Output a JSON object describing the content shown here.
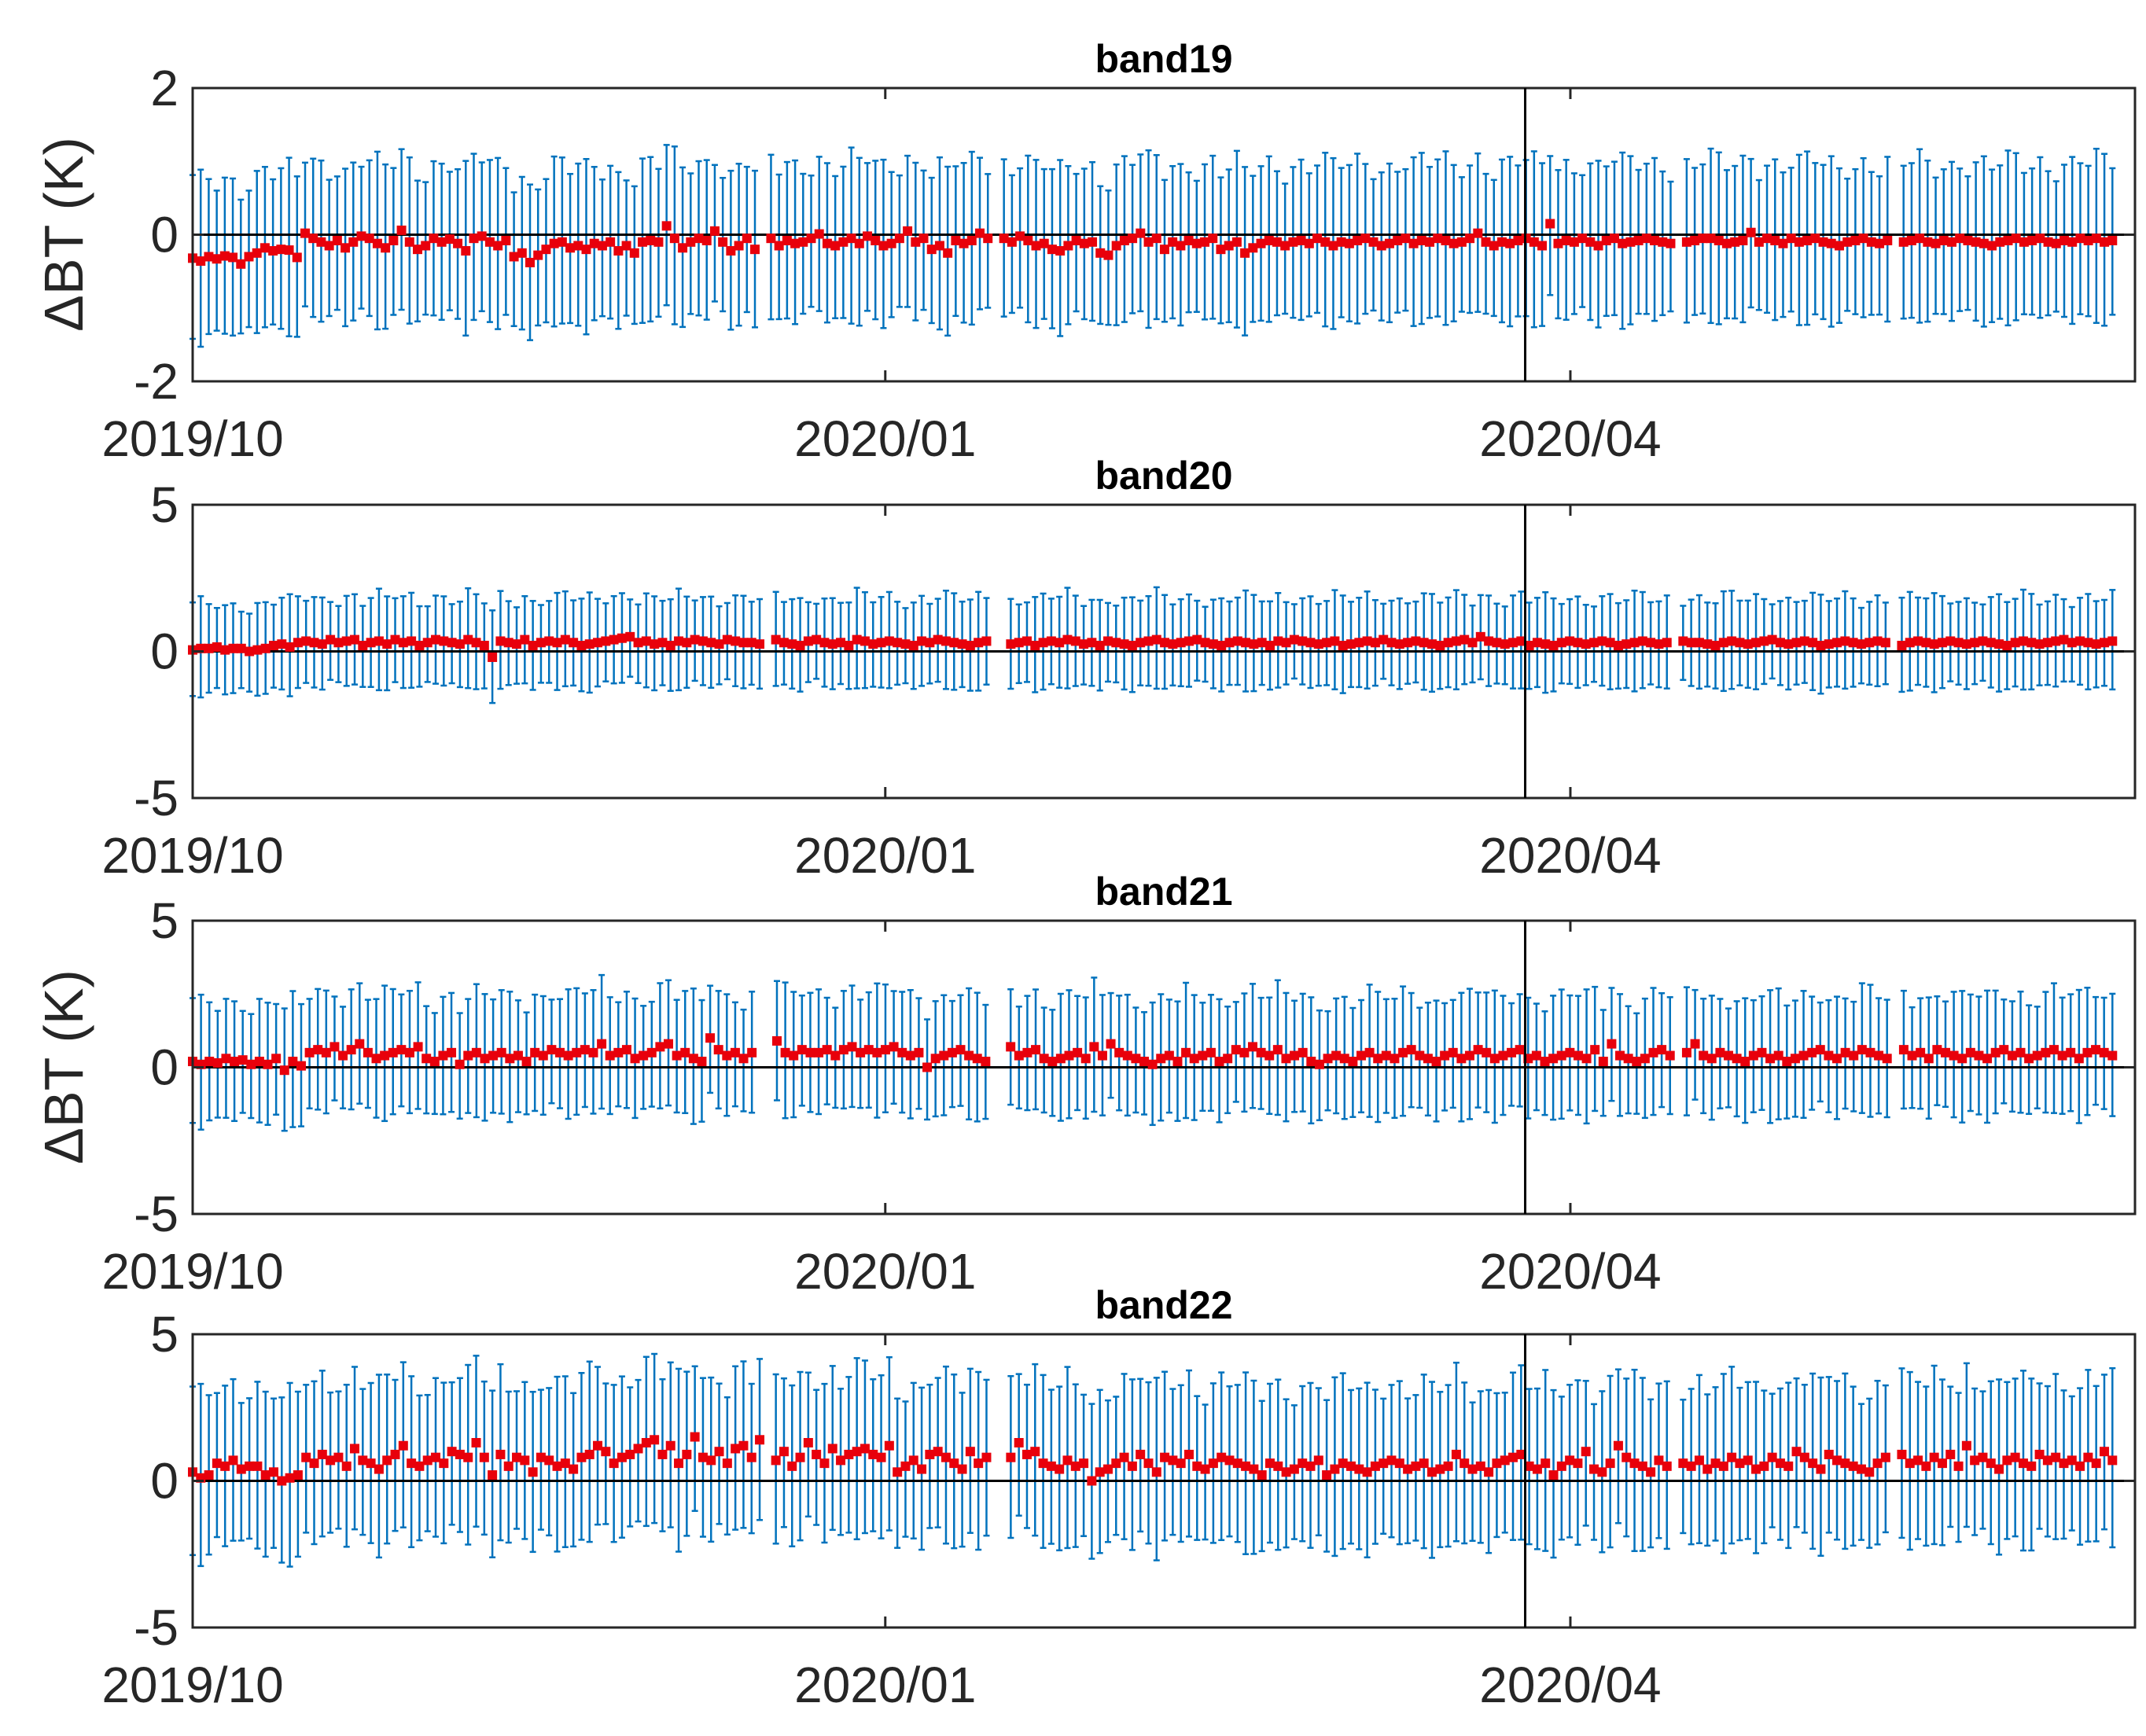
{
  "colors": {
    "errorbar": "#0072BD",
    "marker": "#E8000B",
    "axis": "#262626",
    "reference_line": "#000000"
  },
  "figure": {
    "ylabel": "ΔBT (K)",
    "x_tick_labels": [
      "2019/10",
      "2020/01",
      "2020/04"
    ],
    "vertical_line": "2020/03/26"
  },
  "chart_data": [
    {
      "type": "scatter",
      "title": "band19",
      "ylabel": "ΔBT (K)",
      "ylim": [
        -2,
        2
      ],
      "yticks": [
        2,
        0,
        -2
      ],
      "xlim": [
        "2019/10/01",
        "2020/06/15"
      ],
      "xticks": [
        "2019/10",
        "2020/01",
        "2020/04"
      ],
      "x_start": "2019/10/01",
      "x_end": "2020/06/12",
      "gaps": [
        "2019/12/16",
        "2020/01/16",
        "2020/04/15",
        "2020/05/14"
      ],
      "mean_level": -0.15,
      "std_approx": 1.05,
      "reference_line_y": 0,
      "series": [
        {
          "values": [
            -0.32,
            -0.36,
            -0.3,
            -0.33,
            -0.29,
            -0.31,
            -0.4,
            -0.3,
            -0.25,
            -0.18,
            -0.22,
            -0.2,
            -0.21,
            -0.31,
            0.02,
            -0.05,
            -0.1,
            -0.15,
            -0.08,
            -0.18,
            -0.1,
            -0.02,
            -0.05,
            -0.12,
            -0.18,
            -0.08,
            0.06,
            -0.1,
            -0.2,
            -0.15,
            -0.05,
            -0.1,
            -0.06,
            -0.12,
            -0.22,
            -0.05,
            -0.02,
            -0.1,
            -0.15,
            -0.08,
            -0.3,
            -0.25,
            -0.38,
            -0.28,
            -0.2,
            -0.12,
            -0.1,
            -0.18,
            -0.15,
            -0.2,
            -0.12,
            -0.15,
            -0.1,
            -0.22,
            -0.15,
            -0.25,
            -0.1,
            -0.08,
            -0.1,
            0.12,
            -0.05,
            -0.18,
            -0.1,
            -0.05,
            -0.08,
            0.05,
            -0.1,
            -0.22,
            -0.15,
            -0.05,
            -0.2,
            -0.1,
            -0.05,
            -0.15,
            -0.08,
            -0.12,
            -0.1,
            -0.05,
            0.01,
            -0.12,
            -0.15,
            -0.1,
            -0.05,
            -0.12,
            -0.02,
            -0.08,
            -0.15,
            -0.12,
            -0.05,
            0.05,
            -0.1,
            -0.05,
            -0.2,
            -0.15,
            -0.25,
            -0.08,
            -0.12,
            -0.08,
            0.02,
            -0.05,
            -0.1,
            -0.05,
            -0.1,
            -0.02,
            -0.08,
            -0.15,
            -0.12,
            -0.2,
            -0.22,
            -0.15,
            -0.08,
            -0.12,
            -0.1,
            -0.25,
            -0.28,
            -0.15,
            -0.08,
            -0.05,
            0.02,
            -0.1,
            -0.05,
            -0.2,
            -0.1,
            -0.15,
            -0.08,
            -0.12,
            -0.1,
            -0.05,
            -0.2,
            -0.15,
            -0.1,
            -0.25,
            -0.18,
            -0.12,
            -0.08,
            -0.1,
            -0.15,
            -0.1,
            -0.08,
            -0.12,
            -0.05,
            -0.1,
            -0.15,
            -0.1,
            -0.12,
            -0.08,
            -0.05,
            -0.1,
            -0.15,
            -0.12,
            -0.08,
            -0.05,
            -0.12,
            -0.08,
            -0.1,
            -0.05,
            -0.08,
            -0.12,
            -0.1,
            -0.05,
            0.02,
            -0.1,
            -0.15,
            -0.1,
            -0.12,
            -0.08,
            -0.05,
            -0.1,
            -0.15,
            0.15,
            -0.12,
            -0.08,
            -0.1,
            -0.05,
            -0.1,
            -0.15,
            -0.08,
            -0.05,
            -0.12,
            -0.1,
            -0.08,
            -0.05,
            -0.08,
            -0.1,
            -0.12,
            -0.15,
            -0.1,
            -0.08,
            -0.05,
            -0.05,
            -0.08,
            -0.12,
            -0.1,
            -0.08,
            0.03,
            -0.1,
            -0.05,
            -0.08,
            -0.12,
            -0.05,
            -0.1,
            -0.08,
            -0.05,
            -0.1,
            -0.12,
            -0.15,
            -0.1,
            -0.08,
            -0.05,
            -0.1,
            -0.12,
            -0.08,
            -0.05,
            -0.1,
            -0.08,
            -0.05,
            -0.1,
            -0.12,
            -0.08,
            -0.1,
            -0.05,
            -0.08,
            -0.1,
            -0.12,
            -0.15,
            -0.1,
            -0.08,
            -0.05,
            -0.1,
            -0.08,
            -0.05,
            -0.1,
            -0.12,
            -0.08,
            -0.1,
            -0.05,
            -0.08,
            -0.05,
            -0.1,
            -0.08
          ]
        }
      ]
    },
    {
      "type": "scatter",
      "title": "band20",
      "ylabel": "",
      "ylim": [
        -5,
        5
      ],
      "yticks": [
        5,
        0,
        -5
      ],
      "xlim": [
        "2019/10/01",
        "2020/06/15"
      ],
      "xticks": [
        "2019/10",
        "2020/01",
        "2020/04"
      ],
      "x_start": "2019/10/01",
      "x_end": "2020/06/12",
      "gaps": [
        "2019/12/16",
        "2020/01/16",
        "2020/04/15",
        "2020/05/14"
      ],
      "mean_level": 0.25,
      "std_approx": 1.5,
      "reference_line_y": 0,
      "series": [
        {
          "values": [
            0.05,
            0.1,
            0.1,
            0.15,
            0.05,
            0.1,
            0.1,
            0.0,
            0.05,
            0.1,
            0.2,
            0.25,
            0.15,
            0.3,
            0.35,
            0.3,
            0.25,
            0.4,
            0.3,
            0.35,
            0.4,
            0.2,
            0.3,
            0.35,
            0.25,
            0.4,
            0.3,
            0.35,
            0.2,
            0.3,
            0.4,
            0.35,
            0.3,
            0.25,
            0.4,
            0.3,
            0.2,
            -0.2,
            0.35,
            0.3,
            0.25,
            0.4,
            0.2,
            0.3,
            0.35,
            0.3,
            0.4,
            0.3,
            0.2,
            0.25,
            0.3,
            0.35,
            0.4,
            0.45,
            0.5,
            0.3,
            0.35,
            0.25,
            0.3,
            0.2,
            0.35,
            0.3,
            0.4,
            0.35,
            0.3,
            0.25,
            0.4,
            0.35,
            0.3,
            0.3,
            0.25,
            0.35,
            0.4,
            0.3,
            0.25,
            0.2,
            0.35,
            0.4,
            0.3,
            0.25,
            0.3,
            0.2,
            0.4,
            0.35,
            0.25,
            0.3,
            0.35,
            0.3,
            0.25,
            0.2,
            0.35,
            0.3,
            0.4,
            0.35,
            0.3,
            0.25,
            0.2,
            0.3,
            0.35,
            0.4,
            0.3,
            0.25,
            0.3,
            0.35,
            0.2,
            0.3,
            0.35,
            0.3,
            0.4,
            0.35,
            0.25,
            0.3,
            0.2,
            0.35,
            0.3,
            0.25,
            0.2,
            0.3,
            0.35,
            0.4,
            0.3,
            0.25,
            0.3,
            0.35,
            0.4,
            0.3,
            0.25,
            0.2,
            0.3,
            0.35,
            0.3,
            0.25,
            0.3,
            0.2,
            0.35,
            0.3,
            0.4,
            0.35,
            0.3,
            0.25,
            0.3,
            0.35,
            0.2,
            0.25,
            0.3,
            0.35,
            0.3,
            0.4,
            0.3,
            0.25,
            0.3,
            0.35,
            0.3,
            0.25,
            0.2,
            0.3,
            0.35,
            0.4,
            0.3,
            0.5,
            0.35,
            0.3,
            0.25,
            0.3,
            0.35,
            0.2,
            0.3,
            0.25,
            0.2,
            0.3,
            0.35,
            0.3,
            0.25,
            0.3,
            0.35,
            0.3,
            0.2,
            0.25,
            0.3,
            0.35,
            0.3,
            0.25,
            0.3,
            0.2,
            0.35,
            0.3,
            0.3,
            0.25,
            0.2,
            0.3,
            0.35,
            0.3,
            0.25,
            0.3,
            0.35,
            0.4,
            0.3,
            0.25,
            0.3,
            0.35,
            0.3,
            0.2,
            0.25,
            0.3,
            0.35,
            0.3,
            0.25,
            0.3,
            0.35,
            0.3,
            0.25,
            0.2,
            0.3,
            0.35,
            0.3,
            0.25,
            0.3,
            0.35,
            0.3,
            0.25,
            0.3,
            0.35,
            0.3,
            0.25,
            0.2,
            0.3,
            0.35,
            0.3,
            0.25,
            0.3,
            0.35,
            0.4,
            0.3,
            0.35,
            0.3,
            0.25,
            0.3,
            0.35
          ]
        }
      ]
    },
    {
      "type": "scatter",
      "title": "band21",
      "ylabel": "ΔBT (K)",
      "ylim": [
        -5,
        5
      ],
      "yticks": [
        5,
        0,
        -5
      ],
      "xlim": [
        "2019/10/01",
        "2020/06/15"
      ],
      "xticks": [
        "2019/10",
        "2020/01",
        "2020/04"
      ],
      "x_start": "2019/10/01",
      "x_end": "2020/06/12",
      "gaps": [
        "2019/12/16",
        "2020/01/16",
        "2020/04/15",
        "2020/05/14"
      ],
      "mean_level": 0.4,
      "std_approx": 2.0,
      "reference_line_y": 0,
      "series": [
        {
          "values": [
            0.2,
            0.1,
            0.2,
            0.15,
            0.3,
            0.2,
            0.25,
            0.1,
            0.2,
            0.1,
            0.3,
            -0.1,
            0.2,
            0.05,
            0.5,
            0.6,
            0.5,
            0.7,
            0.4,
            0.6,
            0.8,
            0.5,
            0.3,
            0.4,
            0.5,
            0.6,
            0.5,
            0.7,
            0.3,
            0.2,
            0.4,
            0.5,
            0.1,
            0.4,
            0.5,
            0.3,
            0.4,
            0.5,
            0.3,
            0.4,
            0.2,
            0.5,
            0.4,
            0.6,
            0.5,
            0.4,
            0.5,
            0.6,
            0.5,
            0.8,
            0.4,
            0.5,
            0.6,
            0.3,
            0.4,
            0.5,
            0.7,
            0.8,
            0.4,
            0.5,
            0.3,
            0.2,
            1.0,
            0.6,
            0.4,
            0.5,
            0.3,
            0.5,
            0.6,
            0.4,
            0.9,
            0.5,
            0.4,
            0.6,
            0.5,
            0.5,
            0.6,
            0.4,
            0.6,
            0.7,
            0.5,
            0.6,
            0.5,
            0.6,
            0.7,
            0.5,
            0.4,
            0.5,
            0.0,
            0.3,
            0.4,
            0.5,
            0.6,
            0.4,
            0.3,
            0.2,
            0.6,
            0.4,
            0.7,
            0.4,
            0.5,
            0.6,
            0.3,
            0.2,
            0.3,
            0.4,
            0.5,
            0.3,
            0.7,
            0.4,
            0.8,
            0.5,
            0.4,
            0.3,
            0.2,
            0.1,
            0.3,
            0.4,
            0.2,
            0.5,
            0.3,
            0.4,
            0.5,
            0.2,
            0.3,
            0.6,
            0.5,
            0.7,
            0.5,
            0.4,
            0.6,
            0.3,
            0.4,
            0.5,
            0.2,
            0.1,
            0.3,
            0.4,
            0.3,
            0.2,
            0.4,
            0.5,
            0.3,
            0.4,
            0.3,
            0.5,
            0.6,
            0.4,
            0.3,
            0.2,
            0.4,
            0.5,
            0.3,
            0.4,
            0.6,
            0.5,
            0.3,
            0.4,
            0.5,
            0.6,
            0.3,
            0.4,
            0.2,
            0.3,
            0.4,
            0.5,
            0.4,
            0.3,
            0.6,
            0.2,
            0.8,
            0.4,
            0.3,
            0.2,
            0.3,
            0.5,
            0.6,
            0.4,
            0.7,
            0.5,
            0.8,
            0.4,
            0.3,
            0.5,
            0.4,
            0.3,
            0.2,
            0.4,
            0.5,
            0.3,
            0.4,
            0.2,
            0.3,
            0.4,
            0.5,
            0.6,
            0.4,
            0.3,
            0.5,
            0.4,
            0.6,
            0.5,
            0.4,
            0.3,
            0.5,
            0.6,
            0.4,
            0.5,
            0.3,
            0.6,
            0.5,
            0.4,
            0.3,
            0.5,
            0.4,
            0.3,
            0.5,
            0.6,
            0.4,
            0.5,
            0.3,
            0.4,
            0.5,
            0.6,
            0.4,
            0.5,
            0.3,
            0.5,
            0.6,
            0.5,
            0.4
          ]
        }
      ]
    },
    {
      "type": "scatter",
      "title": "band22",
      "ylabel": "",
      "ylim": [
        -5,
        5
      ],
      "yticks": [
        5,
        0,
        -5
      ],
      "xlim": [
        "2019/10/01",
        "2020/06/15"
      ],
      "xticks": [
        "2019/10",
        "2020/01",
        "2020/04"
      ],
      "x_start": "2019/10/01",
      "x_end": "2020/06/12",
      "gaps": [
        "2019/12/16",
        "2020/01/16",
        "2020/04/15",
        "2020/05/14"
      ],
      "mean_level": 0.65,
      "std_approx": 2.7,
      "reference_line_y": 0,
      "series": [
        {
          "values": [
            0.3,
            0.1,
            0.2,
            0.6,
            0.5,
            0.7,
            0.4,
            0.5,
            0.5,
            0.2,
            0.3,
            0.0,
            0.1,
            0.2,
            0.8,
            0.6,
            0.9,
            0.7,
            0.8,
            0.5,
            1.1,
            0.7,
            0.6,
            0.4,
            0.7,
            0.9,
            1.2,
            0.6,
            0.5,
            0.7,
            0.8,
            0.6,
            1.0,
            0.9,
            0.8,
            1.3,
            0.8,
            0.2,
            0.9,
            0.5,
            0.8,
            0.7,
            0.3,
            0.8,
            0.7,
            0.5,
            0.6,
            0.4,
            0.8,
            0.9,
            1.2,
            1.0,
            0.6,
            0.8,
            0.9,
            1.1,
            1.3,
            1.4,
            0.9,
            1.2,
            0.6,
            0.9,
            1.5,
            0.8,
            0.7,
            1.0,
            0.6,
            1.1,
            1.2,
            0.8,
            1.4,
            0.9,
            0.7,
            1.0,
            0.5,
            0.8,
            1.3,
            0.9,
            0.6,
            1.1,
            0.7,
            0.9,
            1.0,
            1.1,
            0.9,
            0.8,
            1.2,
            0.3,
            0.5,
            0.7,
            0.4,
            0.9,
            1.0,
            0.8,
            0.6,
            0.4,
            1.0,
            0.6,
            0.8,
            1.1,
            0.5,
            0.8,
            1.3,
            0.9,
            1.0,
            0.6,
            0.5,
            0.4,
            0.7,
            0.5,
            0.6,
            0.0,
            0.3,
            0.4,
            0.6,
            0.8,
            0.5,
            0.9,
            0.6,
            0.3,
            0.8,
            0.7,
            0.6,
            0.9,
            0.5,
            0.4,
            0.6,
            0.8,
            0.7,
            0.6,
            0.5,
            0.4,
            0.2,
            0.6,
            0.5,
            0.3,
            0.4,
            0.6,
            0.5,
            0.7,
            0.2,
            0.4,
            0.6,
            0.5,
            0.4,
            0.3,
            0.5,
            0.6,
            0.7,
            0.6,
            0.4,
            0.5,
            0.6,
            0.3,
            0.4,
            0.5,
            0.9,
            0.6,
            0.4,
            0.5,
            0.3,
            0.6,
            0.7,
            0.8,
            0.9,
            0.5,
            0.4,
            0.6,
            0.2,
            0.5,
            0.7,
            0.6,
            1.0,
            0.4,
            0.3,
            0.6,
            1.2,
            0.8,
            0.6,
            0.5,
            0.3,
            0.7,
            0.5,
            0.4,
            0.6,
            0.5,
            0.7,
            0.4,
            0.6,
            0.5,
            0.8,
            0.6,
            0.7,
            0.4,
            0.5,
            0.8,
            0.6,
            0.5,
            1.0,
            0.8,
            0.6,
            0.4,
            0.9,
            0.7,
            0.6,
            0.5,
            0.4,
            0.3,
            0.6,
            0.8,
            0.5,
            0.9,
            0.6,
            0.7,
            0.5,
            0.8,
            0.6,
            0.9,
            0.5,
            1.2,
            0.7,
            0.8,
            0.6,
            0.4,
            0.7,
            0.8,
            0.6,
            0.5,
            0.9,
            0.7,
            0.8,
            0.6,
            0.7,
            0.5,
            0.8,
            0.6,
            1.0,
            0.7
          ]
        }
      ]
    }
  ]
}
